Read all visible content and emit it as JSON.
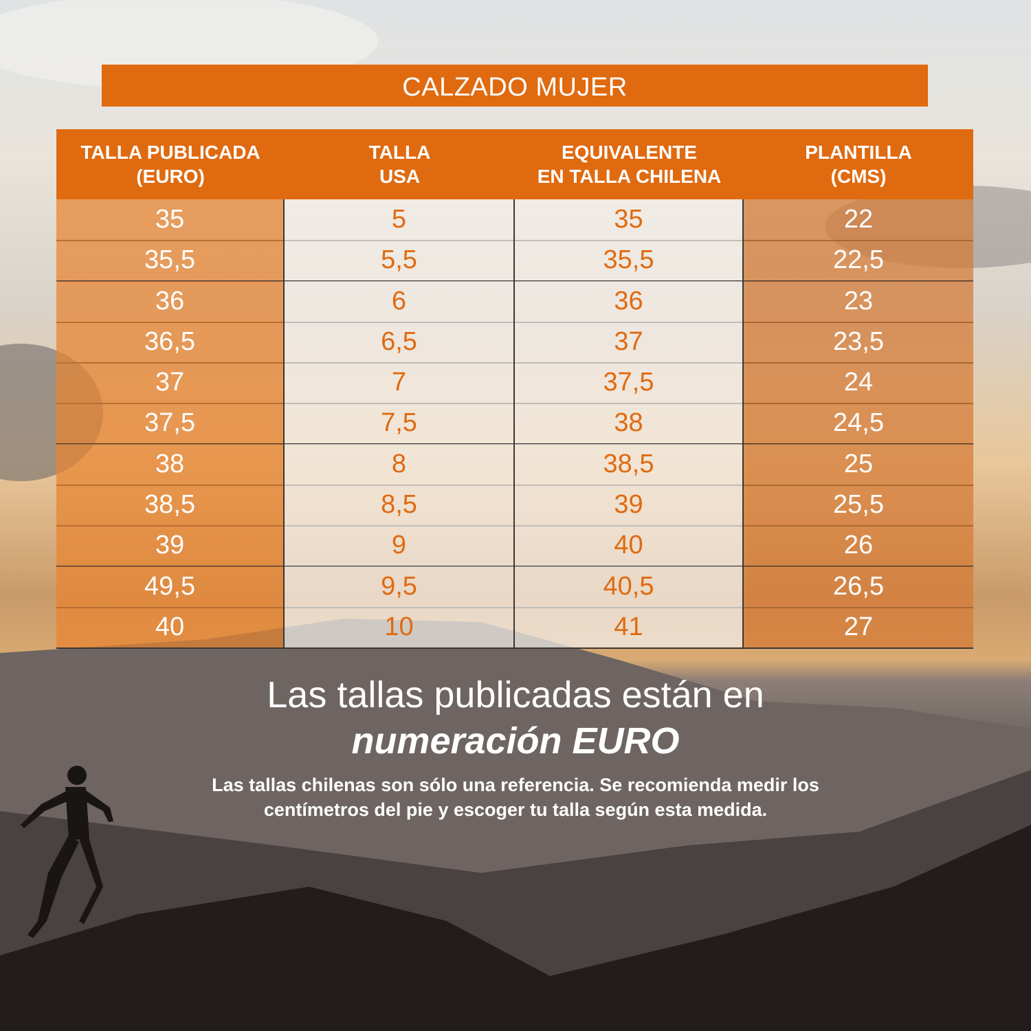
{
  "title": "CALZADO MUJER",
  "colors": {
    "accent": "#e06a10"
  },
  "headers": [
    {
      "line1": "TALLA PUBLICADA",
      "line2": "(EURO)"
    },
    {
      "line1": "TALLA",
      "line2": "USA"
    },
    {
      "line1": "EQUIVALENTE",
      "line2": "EN TALLA CHILENA"
    },
    {
      "line1": "PLANTILLA",
      "line2": "(CMS)"
    }
  ],
  "rows": [
    [
      "35",
      "5",
      "35",
      "22"
    ],
    [
      "35,5",
      "5,5",
      "35,5",
      "22,5"
    ],
    [
      "36",
      "6",
      "36",
      "23"
    ],
    [
      "36,5",
      "6,5",
      "37",
      "23,5"
    ],
    [
      "37",
      "7",
      "37,5",
      "24"
    ],
    [
      "37,5",
      "7,5",
      "38",
      "24,5"
    ],
    [
      "38",
      "8",
      "38,5",
      "25"
    ],
    [
      "38,5",
      "8,5",
      "39",
      "25,5"
    ],
    [
      "39",
      "9",
      "40",
      "26"
    ],
    [
      "49,5",
      "9,5",
      "40,5",
      "26,5"
    ],
    [
      "40",
      "10",
      "41",
      "27"
    ]
  ],
  "message": {
    "line1": "Las tallas publicadas están en",
    "line2": "numeración EURO",
    "note": "Las tallas chilenas son sólo una referencia. Se recomienda medir los centímetros del pie y escoger tu talla según esta medida."
  }
}
